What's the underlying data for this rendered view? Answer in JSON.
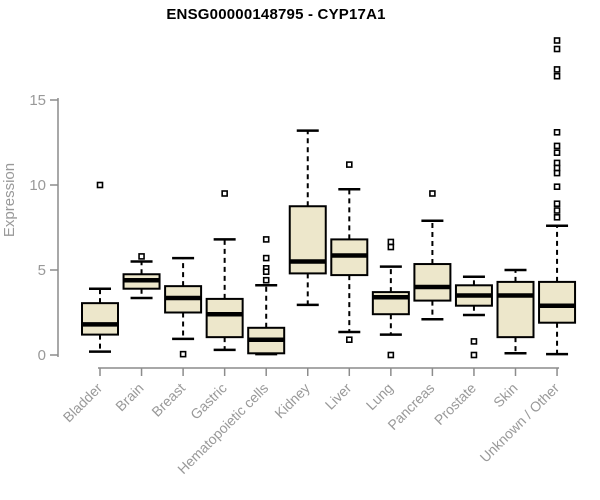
{
  "window": {
    "background": "#ffffff"
  },
  "chart_data": {
    "type": "boxplot",
    "title": "ENSG00000148795 - CYP17A1",
    "ylabel": "Expression",
    "xlabel": "",
    "y_ticks": [
      0,
      5,
      10,
      15
    ],
    "ylim": [
      0,
      18.8
    ],
    "grid": false,
    "legend": "none",
    "categories": [
      "Bladder",
      "Brain",
      "Breast",
      "Gastric",
      "Hematopoietic cells",
      "Kidney",
      "Liver",
      "Lung",
      "Pancreas",
      "Prostate",
      "Skin",
      "Unknown / Other"
    ],
    "series": [
      {
        "category": "Bladder",
        "whisker_low": 0.2,
        "q1": 1.2,
        "median": 1.8,
        "q3": 3.05,
        "whisker_high": 3.9,
        "outliers": [
          10.0
        ]
      },
      {
        "category": "Brain",
        "whisker_low": 3.35,
        "q1": 3.9,
        "median": 4.4,
        "q3": 4.75,
        "whisker_high": 5.5,
        "outliers": [
          5.8
        ]
      },
      {
        "category": "Breast",
        "whisker_low": 0.95,
        "q1": 2.5,
        "median": 3.35,
        "q3": 4.05,
        "whisker_high": 5.7,
        "outliers": [
          0.05
        ]
      },
      {
        "category": "Gastric",
        "whisker_low": 0.3,
        "q1": 1.05,
        "median": 2.4,
        "q3": 3.3,
        "whisker_high": 6.8,
        "outliers": [
          9.5
        ]
      },
      {
        "category": "Hematopoietic cells",
        "whisker_low": 0.05,
        "q1": 0.1,
        "median": 0.9,
        "q3": 1.6,
        "whisker_high": 4.1,
        "outliers": [
          6.8,
          5.7,
          5.1,
          4.9,
          4.4
        ]
      },
      {
        "category": "Kidney",
        "whisker_low": 2.95,
        "q1": 4.8,
        "median": 5.5,
        "q3": 8.75,
        "whisker_high": 13.2,
        "outliers": []
      },
      {
        "category": "Liver",
        "whisker_low": 1.35,
        "q1": 4.7,
        "median": 5.85,
        "q3": 6.8,
        "whisker_high": 9.75,
        "outliers": [
          11.2,
          0.9
        ]
      },
      {
        "category": "Lung",
        "whisker_low": 1.2,
        "q1": 2.4,
        "median": 3.4,
        "q3": 3.7,
        "whisker_high": 5.2,
        "outliers": [
          6.65,
          6.35,
          0.0
        ]
      },
      {
        "category": "Pancreas",
        "whisker_low": 2.1,
        "q1": 3.2,
        "median": 4.0,
        "q3": 5.35,
        "whisker_high": 7.9,
        "outliers": [
          9.5
        ]
      },
      {
        "category": "Prostate",
        "whisker_low": 2.35,
        "q1": 2.9,
        "median": 3.5,
        "q3": 4.1,
        "whisker_high": 4.6,
        "outliers": [
          0.8,
          0.0
        ]
      },
      {
        "category": "Skin",
        "whisker_low": 0.1,
        "q1": 1.05,
        "median": 3.5,
        "q3": 4.3,
        "whisker_high": 5.0,
        "outliers": []
      },
      {
        "category": "Unknown / Other",
        "whisker_low": 0.05,
        "q1": 1.9,
        "median": 2.9,
        "q3": 4.3,
        "whisker_high": 7.6,
        "outliers": [
          18.5,
          18.0,
          16.8,
          16.4,
          13.1,
          12.3,
          11.9,
          11.3,
          11.0,
          10.7,
          9.9,
          8.9,
          8.5,
          8.1
        ]
      }
    ],
    "colors": {
      "box_fill": "#EDE7CB",
      "box_stroke": "#000000",
      "median": "#000000",
      "whisker": "#000000",
      "outlier_stroke": "#000000",
      "axis": "#8C8C8C",
      "tick_text": "#999999",
      "title_text": "#000000"
    }
  }
}
